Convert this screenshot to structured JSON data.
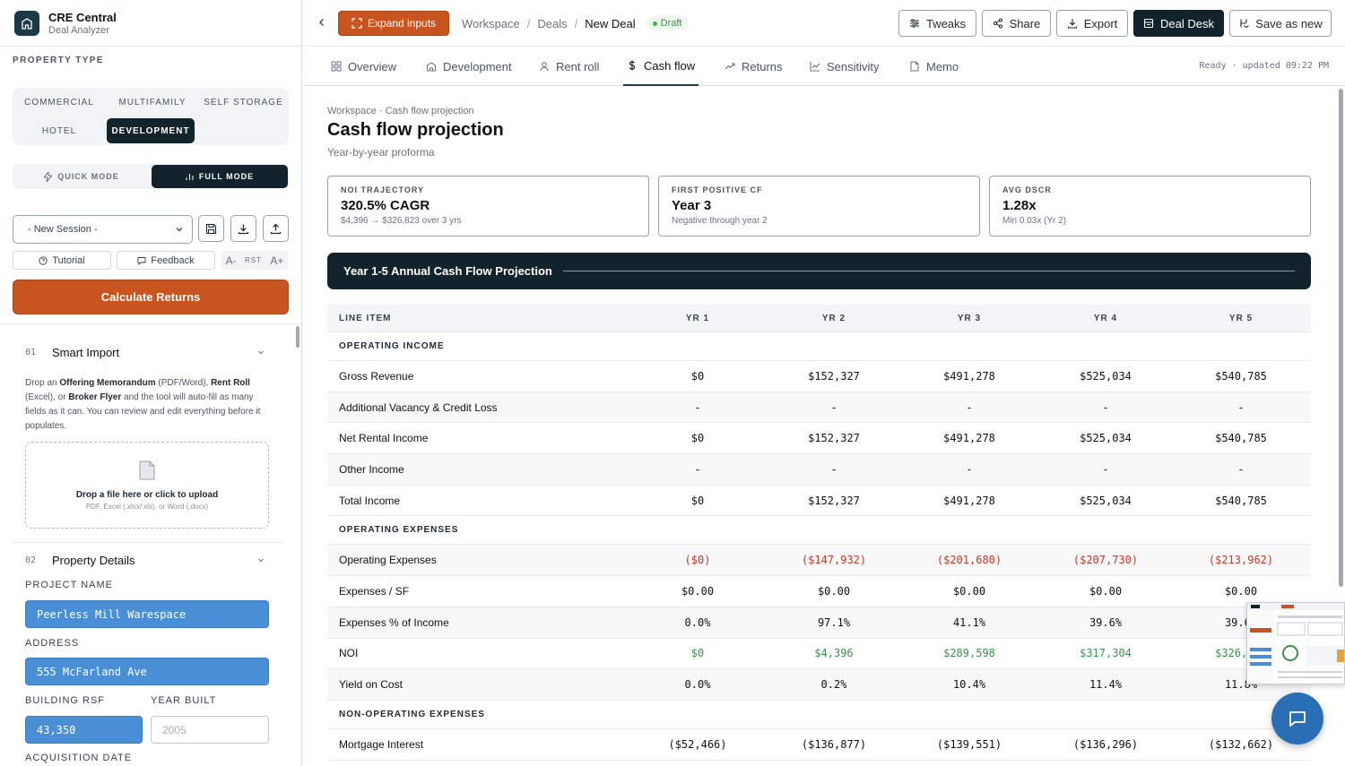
{
  "brand": {
    "name": "CRE Central",
    "subtitle": "Deal Analyzer"
  },
  "sidebar": {
    "property_type_label": "PROPERTY TYPE",
    "property_types": [
      "COMMERCIAL",
      "MULTIFAMILY",
      "SELF STORAGE",
      "HOTEL",
      "DEVELOPMENT"
    ],
    "property_type_selected": "DEVELOPMENT",
    "modes": {
      "quick": "QUICK MODE",
      "full": "FULL MODE",
      "selected": "FULL MODE"
    },
    "session_value": "- New Session -",
    "tutorial_label": "Tutorial",
    "feedback_label": "Feedback",
    "font_minus": "A-",
    "font_reset": "RST",
    "font_plus": "A+",
    "calculate_label": "Calculate Returns",
    "smart_import": {
      "num": "01",
      "title": "Smart Import",
      "desc_1": "Drop an ",
      "desc_b1": "Offering Memorandum",
      "desc_2": " (PDF/Word), ",
      "desc_b2": "Rent Roll",
      "desc_3": " (Excel), or ",
      "desc_b3": "Broker Flyer",
      "desc_4": " and the tool will auto-fill as many fields as it can. You can review and edit everything before it populates.",
      "drop_title": "Drop a file here or click to upload",
      "drop_sub": "PDF, Excel (.xlsx/.xls), or Word (.docx)"
    },
    "property_details": {
      "num": "02",
      "title": "Property Details",
      "project_name_label": "PROJECT NAME",
      "project_name": "Peerless Mill Warespace",
      "address_label": "ADDRESS",
      "address": "555 McFarland Ave",
      "rsf_label": "BUILDING RSF",
      "rsf": "43,350",
      "year_built_label": "YEAR BUILT",
      "year_built_placeholder": "2005",
      "acq_date_label": "ACQUISITION DATE"
    }
  },
  "topbar": {
    "expand_label": "Expand inputs",
    "breadcrumbs": [
      "Workspace",
      "Deals",
      "New Deal"
    ],
    "draft_label": "Draft",
    "buttons": {
      "tweaks": "Tweaks",
      "share": "Share",
      "export": "Export",
      "deal_desk": "Deal Desk",
      "save_new": "Save as new"
    }
  },
  "tabs": {
    "items": [
      "Overview",
      "Development",
      "Rent roll",
      "Cash flow",
      "Returns",
      "Sensitivity",
      "Memo"
    ],
    "active": "Cash flow",
    "status": "Ready · updated 09:22 PM"
  },
  "main": {
    "crumb": "Workspace · Cash flow projection",
    "title": "Cash flow projection",
    "subtitle": "Year-by-year proforma",
    "kpis": [
      {
        "label": "NOI TRAJECTORY",
        "value": "320.5% CAGR",
        "sub": "$4,396 → $326,823 over 3 yrs"
      },
      {
        "label": "FIRST POSITIVE CF",
        "value": "Year 3",
        "sub": "Negative through year 2"
      },
      {
        "label": "AVG DSCR",
        "value": "1.28x",
        "sub": "Min 0.03x (Yr 2)"
      }
    ],
    "banner_title": "Year 1-5 Annual Cash Flow Projection",
    "table": {
      "headers": [
        "LINE ITEM",
        "YR 1",
        "YR 2",
        "YR 3",
        "YR 4",
        "YR 5"
      ],
      "rows": [
        {
          "type": "section",
          "label": "OPERATING INCOME"
        },
        {
          "type": "row",
          "label": "Gross Revenue",
          "values": [
            "$0",
            "$152,327",
            "$491,278",
            "$525,034",
            "$540,785"
          ]
        },
        {
          "type": "row",
          "label": "Additional Vacancy & Credit Loss",
          "values": [
            "-",
            "-",
            "-",
            "-",
            "-"
          ]
        },
        {
          "type": "row",
          "label": "Net Rental Income",
          "values": [
            "$0",
            "$152,327",
            "$491,278",
            "$525,034",
            "$540,785"
          ]
        },
        {
          "type": "row",
          "label": "Other Income",
          "values": [
            "-",
            "-",
            "-",
            "-",
            "-"
          ]
        },
        {
          "type": "row",
          "label": "Total Income",
          "values": [
            "$0",
            "$152,327",
            "$491,278",
            "$525,034",
            "$540,785"
          ]
        },
        {
          "type": "section",
          "label": "OPERATING EXPENSES"
        },
        {
          "type": "row",
          "style": "neg",
          "label": "Operating Expenses",
          "values": [
            "($0)",
            "($147,932)",
            "($201,680)",
            "($207,730)",
            "($213,962)"
          ]
        },
        {
          "type": "row",
          "label": "Expenses / SF",
          "values": [
            "$0.00",
            "$0.00",
            "$0.00",
            "$0.00",
            "$0.00"
          ]
        },
        {
          "type": "row",
          "label": "Expenses % of Income",
          "values": [
            "0.0%",
            "97.1%",
            "41.1%",
            "39.6%",
            "39.6%"
          ]
        },
        {
          "type": "row",
          "style": "pos",
          "label": "NOI",
          "values": [
            "$0",
            "$4,396",
            "$289,598",
            "$317,304",
            "$326,823"
          ]
        },
        {
          "type": "row",
          "label": "Yield on Cost",
          "values": [
            "0.0%",
            "0.2%",
            "10.4%",
            "11.4%",
            "11.8%"
          ]
        },
        {
          "type": "section",
          "label": "NON-OPERATING EXPENSES"
        },
        {
          "type": "row",
          "label": "Mortgage Interest",
          "values": [
            "($52,466)",
            "($136,877)",
            "($139,551)",
            "($136,296)",
            "($132,662)"
          ]
        }
      ]
    }
  },
  "colors": {
    "accent": "#c8541f",
    "dark": "#13232b",
    "field_fill": "#4a8fd6",
    "negative": "#c0392b",
    "positive": "#3f8f4f",
    "chat": "#2a6fb5"
  }
}
